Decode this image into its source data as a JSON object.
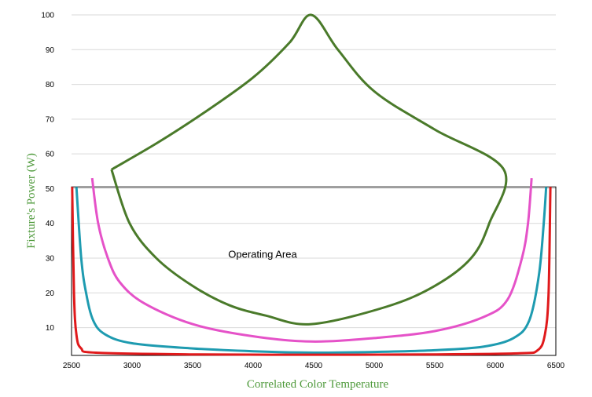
{
  "chart_data": {
    "type": "line",
    "xlabel": "Correlated Color Temperature",
    "ylabel": "Fixture's Power (W)",
    "xlim": [
      2500,
      6500
    ],
    "ylim": [
      2,
      100
    ],
    "x_ticks": [
      "2500",
      "3000",
      "3500",
      "4000",
      "4500",
      "5000",
      "5500",
      "6000",
      "6500"
    ],
    "y_ticks": [
      "10",
      "20",
      "30",
      "40",
      "50",
      "60",
      "70",
      "80",
      "90",
      "100"
    ],
    "grid": "horizontal",
    "annotation": "Operating Area",
    "operating_area": {
      "x": [
        2500,
        6500
      ],
      "y": [
        2,
        50.5
      ]
    },
    "label_color": "#4f9a3c",
    "series": [
      {
        "color": "#4a7a2a",
        "points": [
          [
            2830,
            55.5
          ],
          [
            3200,
            63
          ],
          [
            3600,
            72
          ],
          [
            4000,
            82
          ],
          [
            4300,
            92
          ],
          [
            4480,
            100
          ],
          [
            4700,
            90
          ],
          [
            5000,
            78
          ],
          [
            5500,
            67
          ],
          [
            6070,
            55.5
          ],
          [
            5950,
            40
          ],
          [
            5800,
            30
          ],
          [
            5500,
            22
          ],
          [
            5100,
            16
          ],
          [
            4480,
            11
          ],
          [
            4100,
            13.5
          ],
          [
            3800,
            16.5
          ],
          [
            3500,
            22
          ],
          [
            3200,
            30
          ],
          [
            2980,
            40
          ],
          [
            2830,
            55.5
          ]
        ]
      },
      {
        "color": "#e552c8",
        "points": [
          [
            2670,
            53
          ],
          [
            2720,
            40
          ],
          [
            2800,
            30
          ],
          [
            2900,
            23
          ],
          [
            3100,
            17
          ],
          [
            3500,
            11
          ],
          [
            4000,
            7.5
          ],
          [
            4480,
            6
          ],
          [
            5000,
            7
          ],
          [
            5500,
            9
          ],
          [
            5900,
            13
          ],
          [
            6100,
            18
          ],
          [
            6220,
            30
          ],
          [
            6270,
            40
          ],
          [
            6300,
            53
          ]
        ]
      },
      {
        "color": "#1e9bb0",
        "points": [
          [
            2540,
            50.5
          ],
          [
            2580,
            30
          ],
          [
            2620,
            20
          ],
          [
            2680,
            12
          ],
          [
            2780,
            8
          ],
          [
            3000,
            5.5
          ],
          [
            3500,
            4
          ],
          [
            4000,
            3.2
          ],
          [
            4500,
            2.8
          ],
          [
            5000,
            3
          ],
          [
            5500,
            3.5
          ],
          [
            5900,
            4.5
          ],
          [
            6150,
            7
          ],
          [
            6280,
            12
          ],
          [
            6360,
            25
          ],
          [
            6400,
            40
          ],
          [
            6420,
            50.5
          ]
        ]
      },
      {
        "color": "#e0191b",
        "points": [
          [
            2505,
            50.5
          ],
          [
            2520,
            20
          ],
          [
            2540,
            8
          ],
          [
            2580,
            4
          ],
          [
            2700,
            2.8
          ],
          [
            3500,
            2.3
          ],
          [
            4500,
            2.2
          ],
          [
            5500,
            2.3
          ],
          [
            6200,
            2.6
          ],
          [
            6350,
            3.5
          ],
          [
            6410,
            8
          ],
          [
            6440,
            20
          ],
          [
            6455,
            50.5
          ]
        ]
      }
    ]
  }
}
